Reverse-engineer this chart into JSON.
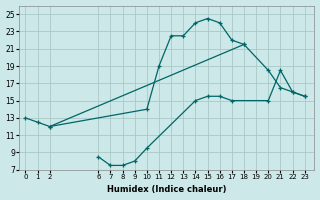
{
  "xlabel": "Humidex (Indice chaleur)",
  "xlim": [
    -0.5,
    23.8
  ],
  "ylim": [
    7,
    26
  ],
  "xticks": [
    0,
    1,
    2,
    6,
    7,
    8,
    9,
    10,
    11,
    12,
    13,
    14,
    15,
    16,
    17,
    18,
    19,
    20,
    21,
    22,
    23
  ],
  "yticks": [
    7,
    9,
    11,
    13,
    15,
    17,
    19,
    21,
    23,
    25
  ],
  "line_color": "#006666",
  "bg_color": "#cce8e8",
  "grid_color": "#aac8c8",
  "series": [
    {
      "x": [
        0,
        1,
        2,
        10,
        11,
        12,
        13,
        14,
        15,
        16,
        17,
        18
      ],
      "y": [
        13,
        12.5,
        12,
        14,
        19,
        22.5,
        22.5,
        24,
        24.5,
        24,
        22,
        21.5
      ]
    },
    {
      "x": [
        2,
        18,
        20,
        21,
        22,
        23
      ],
      "y": [
        12,
        21.5,
        18.5,
        16.5,
        16,
        15.5
      ]
    },
    {
      "x": [
        6,
        7,
        8,
        9,
        10,
        14,
        15,
        16,
        17,
        20,
        21,
        22,
        23
      ],
      "y": [
        8.5,
        7.5,
        7.5,
        8,
        9.5,
        15,
        15.5,
        15.5,
        15,
        15,
        18.5,
        16,
        15.5
      ]
    }
  ]
}
